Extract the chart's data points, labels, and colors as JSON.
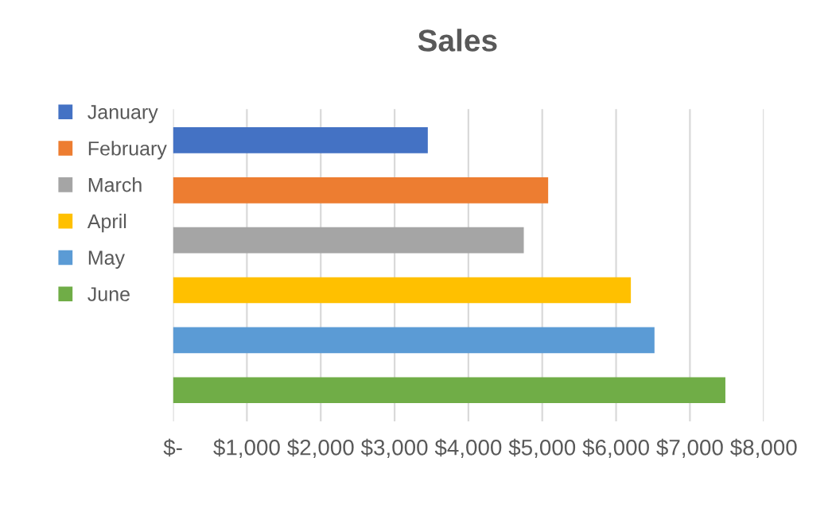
{
  "chart_data": {
    "type": "bar",
    "title": "Sales",
    "orientation": "horizontal",
    "categories": [
      null
    ],
    "series": [
      {
        "name": "January",
        "color": "#4472c4",
        "values": [
          3450
        ]
      },
      {
        "name": "February",
        "color": "#ed7d31",
        "values": [
          5080
        ]
      },
      {
        "name": "March",
        "color": "#a5a5a5",
        "values": [
          4750
        ]
      },
      {
        "name": "April",
        "color": "#ffc000",
        "values": [
          6200
        ]
      },
      {
        "name": "May",
        "color": "#5b9bd5",
        "values": [
          6520
        ]
      },
      {
        "name": "June",
        "color": "#70ad47",
        "values": [
          7480
        ]
      }
    ],
    "xlim": [
      0,
      8000
    ],
    "xticks": [
      {
        "value": 0,
        "label": "$-"
      },
      {
        "value": 1000,
        "label": "$1,000"
      },
      {
        "value": 2000,
        "label": "$2,000"
      },
      {
        "value": 3000,
        "label": "$3,000"
      },
      {
        "value": 4000,
        "label": "$4,000"
      },
      {
        "value": 5000,
        "label": "$5,000"
      },
      {
        "value": 6000,
        "label": "$6,000"
      },
      {
        "value": 7000,
        "label": "$7,000"
      },
      {
        "value": 8000,
        "label": "$8,000"
      }
    ],
    "grid": "x",
    "legend": "left"
  }
}
